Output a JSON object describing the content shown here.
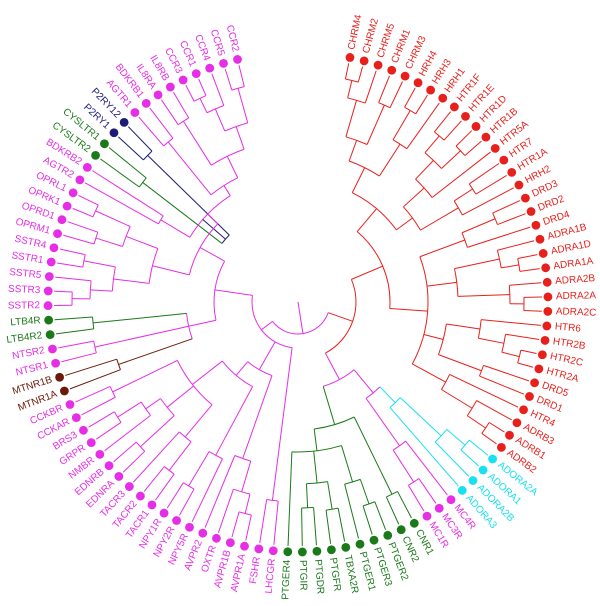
{
  "colors": {
    "red": "#e8201c",
    "magenta": "#e62ee6",
    "cyan": "#19e0f0",
    "green": "#1a7a1a",
    "navy": "#1c1c78",
    "brown": "#6b1a08"
  },
  "leaves": [
    {
      "label": "CHRM4",
      "group": "red"
    },
    {
      "label": "CHRM2",
      "group": "red"
    },
    {
      "label": "CHRM5",
      "group": "red"
    },
    {
      "label": "CHRM1",
      "group": "red"
    },
    {
      "label": "CHRM3",
      "group": "red"
    },
    {
      "label": "HRH4",
      "group": "red"
    },
    {
      "label": "HRH3",
      "group": "red"
    },
    {
      "label": "HRH1",
      "group": "red"
    },
    {
      "label": "HTR1F",
      "group": "red"
    },
    {
      "label": "HTR1E",
      "group": "red"
    },
    {
      "label": "HTR1D",
      "group": "red"
    },
    {
      "label": "HTR1B",
      "group": "red"
    },
    {
      "label": "HTR5A",
      "group": "red"
    },
    {
      "label": "HTR7",
      "group": "red"
    },
    {
      "label": "HTR1A",
      "group": "red"
    },
    {
      "label": "HRH2",
      "group": "red"
    },
    {
      "label": "DRD3",
      "group": "red"
    },
    {
      "label": "DRD2",
      "group": "red"
    },
    {
      "label": "DRD4",
      "group": "red"
    },
    {
      "label": "ADRA1B",
      "group": "red"
    },
    {
      "label": "ADRA1D",
      "group": "red"
    },
    {
      "label": "ADRA1A",
      "group": "red"
    },
    {
      "label": "ADRA2B",
      "group": "red"
    },
    {
      "label": "ADRA2A",
      "group": "red"
    },
    {
      "label": "ADRA2C",
      "group": "red"
    },
    {
      "label": "HTR6",
      "group": "red"
    },
    {
      "label": "HTR2B",
      "group": "red"
    },
    {
      "label": "HTR2C",
      "group": "red"
    },
    {
      "label": "HTR2A",
      "group": "red"
    },
    {
      "label": "DRD5",
      "group": "red"
    },
    {
      "label": "DRD1",
      "group": "red"
    },
    {
      "label": "HTR4",
      "group": "red"
    },
    {
      "label": "ADRB3",
      "group": "red"
    },
    {
      "label": "ADRB1",
      "group": "red"
    },
    {
      "label": "ADRB2",
      "group": "red"
    },
    {
      "label": "ADORA2A",
      "group": "cyan"
    },
    {
      "label": "ADORA1",
      "group": "cyan"
    },
    {
      "label": "ADORA2B",
      "group": "cyan"
    },
    {
      "label": "ADORA3",
      "group": "cyan"
    },
    {
      "label": "MC4R",
      "group": "magenta"
    },
    {
      "label": "MC3R",
      "group": "magenta"
    },
    {
      "label": "MC1R",
      "group": "magenta"
    },
    {
      "label": "CNR1",
      "group": "green"
    },
    {
      "label": "CNR2",
      "group": "green"
    },
    {
      "label": "PTGER2",
      "group": "green"
    },
    {
      "label": "PTGER3",
      "group": "green"
    },
    {
      "label": "PTGER1",
      "group": "green"
    },
    {
      "label": "TBXA2R",
      "group": "green"
    },
    {
      "label": "PTGFR",
      "group": "green"
    },
    {
      "label": "PTGDR",
      "group": "green"
    },
    {
      "label": "PTGIR",
      "group": "green"
    },
    {
      "label": "PTGER4",
      "group": "green"
    },
    {
      "label": "LHCGR",
      "group": "magenta"
    },
    {
      "label": "FSHR",
      "group": "magenta"
    },
    {
      "label": "AVPR1A",
      "group": "magenta"
    },
    {
      "label": "AVPR1B",
      "group": "magenta"
    },
    {
      "label": "OXTR",
      "group": "magenta"
    },
    {
      "label": "AVPR2",
      "group": "magenta"
    },
    {
      "label": "NPY5R",
      "group": "magenta"
    },
    {
      "label": "NPY2R",
      "group": "magenta"
    },
    {
      "label": "NPY1R",
      "group": "magenta"
    },
    {
      "label": "TACR1",
      "group": "magenta"
    },
    {
      "label": "TACR2",
      "group": "magenta"
    },
    {
      "label": "TACR3",
      "group": "magenta"
    },
    {
      "label": "EDNRA",
      "group": "magenta"
    },
    {
      "label": "EDNRB",
      "group": "magenta"
    },
    {
      "label": "NMBR",
      "group": "magenta"
    },
    {
      "label": "GRPR",
      "group": "magenta"
    },
    {
      "label": "BRS3",
      "group": "magenta"
    },
    {
      "label": "CCKAR",
      "group": "magenta"
    },
    {
      "label": "CCKBR",
      "group": "magenta"
    },
    {
      "label": "MTNR1A",
      "group": "brown"
    },
    {
      "label": "MTNR1B",
      "group": "brown"
    },
    {
      "label": "NTSR1",
      "group": "magenta"
    },
    {
      "label": "NTSR2",
      "group": "magenta"
    },
    {
      "label": "LTB4R2",
      "group": "green"
    },
    {
      "label": "LTB4R",
      "group": "green"
    },
    {
      "label": "SSTR2",
      "group": "magenta"
    },
    {
      "label": "SSTR3",
      "group": "magenta"
    },
    {
      "label": "SSTR5",
      "group": "magenta"
    },
    {
      "label": "SSTR1",
      "group": "magenta"
    },
    {
      "label": "SSTR4",
      "group": "magenta"
    },
    {
      "label": "OPRM1",
      "group": "magenta"
    },
    {
      "label": "OPRD1",
      "group": "magenta"
    },
    {
      "label": "OPRK1",
      "group": "magenta"
    },
    {
      "label": "OPRL1",
      "group": "magenta"
    },
    {
      "label": "AGTR2",
      "group": "magenta"
    },
    {
      "label": "BDKRB2",
      "group": "magenta"
    },
    {
      "label": "CYSLTR2",
      "group": "green"
    },
    {
      "label": "CYSLTR1",
      "group": "green"
    },
    {
      "label": "P2RY1",
      "group": "navy"
    },
    {
      "label": "P2RY12",
      "group": "navy"
    },
    {
      "label": "AGTR1",
      "group": "magenta"
    },
    {
      "label": "BDKRB1",
      "group": "magenta"
    },
    {
      "label": "IL8RA",
      "group": "magenta"
    },
    {
      "label": "IL8RB",
      "group": "magenta"
    },
    {
      "label": "CCR3",
      "group": "magenta"
    },
    {
      "label": "CCR1",
      "group": "magenta"
    },
    {
      "label": "CCR4",
      "group": "magenta"
    },
    {
      "label": "CCR5",
      "group": "magenta"
    },
    {
      "label": "CCR2",
      "group": "magenta"
    }
  ]
}
